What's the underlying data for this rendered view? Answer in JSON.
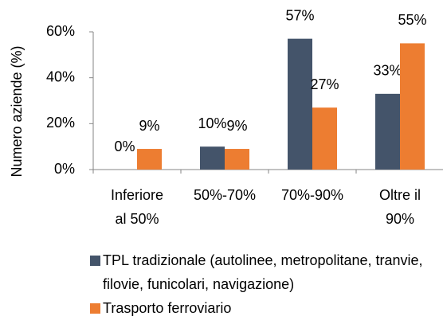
{
  "chart_data": {
    "type": "bar",
    "categories": [
      "Inferiore al 50%",
      "50%-70%",
      "70%-90%",
      "Oltre il 90%"
    ],
    "series": [
      {
        "name": "TPL tradizionale (autolinee, metropolitane, tranvie, filovie, funicolari, navigazione)",
        "color": "#44546a",
        "values": [
          0,
          10,
          57,
          33
        ],
        "value_labels": [
          "0%",
          "10%",
          "57%",
          "33%"
        ]
      },
      {
        "name": "Trasporto ferroviario",
        "color": "#ed7d31",
        "values": [
          9,
          9,
          27,
          55
        ],
        "value_labels": [
          "9%",
          "9%",
          "27%",
          "55%"
        ]
      }
    ],
    "y_label": "Numero aziende (%)",
    "ylim": [
      0,
      60
    ],
    "yticks": [
      {
        "value": 0,
        "label": "0%"
      },
      {
        "value": 20,
        "label": "20%"
      },
      {
        "value": 40,
        "label": "40%"
      },
      {
        "value": 60,
        "label": "60%"
      }
    ],
    "legend": "bottom"
  }
}
